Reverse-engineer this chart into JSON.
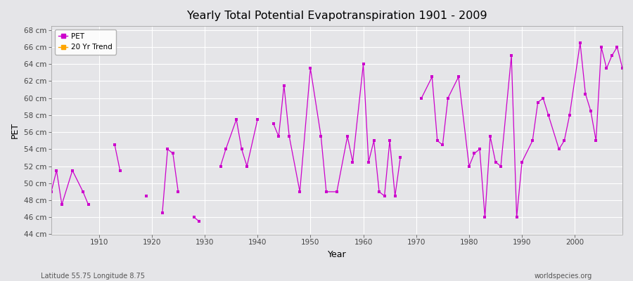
{
  "title": "Yearly Total Potential Evapotranspiration 1901 - 2009",
  "xlabel": "Year",
  "ylabel": "PET",
  "bottom_left": "Latitude 55.75 Longitude 8.75",
  "bottom_right": "worldspecies.org",
  "ylim": [
    44,
    68.5
  ],
  "xlim": [
    1901,
    2009
  ],
  "ytick_labels": [
    "44 cm",
    "46 cm",
    "48 cm",
    "50 cm",
    "52 cm",
    "54 cm",
    "56 cm",
    "58 cm",
    "60 cm",
    "62 cm",
    "64 cm",
    "66 cm",
    "68 cm"
  ],
  "ytick_values": [
    44,
    46,
    48,
    50,
    52,
    54,
    56,
    58,
    60,
    62,
    64,
    66,
    68
  ],
  "background_color": "#e5e5e8",
  "plot_bg_color": "#e5e5e8",
  "grid_color": "#ffffff",
  "line_color": "#cc00cc",
  "trend_color": "#ffa500",
  "pet_data": [
    [
      1901,
      49.0
    ],
    [
      1902,
      51.5
    ],
    [
      1903,
      47.5
    ],
    [
      1905,
      51.5
    ],
    [
      1907,
      49.0
    ],
    [
      1908,
      47.5
    ],
    [
      1913,
      54.5
    ],
    [
      1914,
      51.5
    ],
    [
      1919,
      48.5
    ],
    [
      1922,
      46.5
    ],
    [
      1923,
      54.0
    ],
    [
      1924,
      53.5
    ],
    [
      1925,
      49.0
    ],
    [
      1928,
      46.0
    ],
    [
      1929,
      45.5
    ],
    [
      1933,
      52.0
    ],
    [
      1934,
      54.0
    ],
    [
      1936,
      57.5
    ],
    [
      1937,
      54.0
    ],
    [
      1938,
      52.0
    ],
    [
      1940,
      57.5
    ],
    [
      1943,
      57.0
    ],
    [
      1944,
      55.5
    ],
    [
      1945,
      61.5
    ],
    [
      1946,
      55.5
    ],
    [
      1948,
      49.0
    ],
    [
      1950,
      63.5
    ],
    [
      1952,
      55.5
    ],
    [
      1953,
      49.0
    ],
    [
      1955,
      49.0
    ],
    [
      1957,
      55.5
    ],
    [
      1958,
      52.5
    ],
    [
      1960,
      64.0
    ],
    [
      1961,
      52.5
    ],
    [
      1962,
      55.0
    ],
    [
      1963,
      49.0
    ],
    [
      1964,
      48.5
    ],
    [
      1965,
      55.0
    ],
    [
      1966,
      48.5
    ],
    [
      1967,
      53.0
    ],
    [
      1971,
      60.0
    ],
    [
      1973,
      62.5
    ],
    [
      1974,
      55.0
    ],
    [
      1975,
      54.5
    ],
    [
      1976,
      60.0
    ],
    [
      1978,
      62.5
    ],
    [
      1980,
      52.0
    ],
    [
      1981,
      53.5
    ],
    [
      1982,
      54.0
    ],
    [
      1983,
      46.0
    ],
    [
      1984,
      55.5
    ],
    [
      1985,
      52.5
    ],
    [
      1986,
      52.0
    ],
    [
      1988,
      65.0
    ],
    [
      1989,
      46.0
    ],
    [
      1990,
      52.5
    ],
    [
      1992,
      55.0
    ],
    [
      1993,
      59.5
    ],
    [
      1994,
      60.0
    ],
    [
      1995,
      58.0
    ],
    [
      1997,
      54.0
    ],
    [
      1998,
      55.0
    ],
    [
      1999,
      58.0
    ],
    [
      2001,
      66.5
    ],
    [
      2002,
      60.5
    ],
    [
      2003,
      58.5
    ],
    [
      2004,
      55.0
    ],
    [
      2005,
      66.0
    ],
    [
      2006,
      63.5
    ],
    [
      2007,
      65.0
    ],
    [
      2008,
      66.0
    ],
    [
      2009,
      63.5
    ]
  ],
  "legend_pet_color": "#cc00cc",
  "legend_trend_color": "#ffa500"
}
